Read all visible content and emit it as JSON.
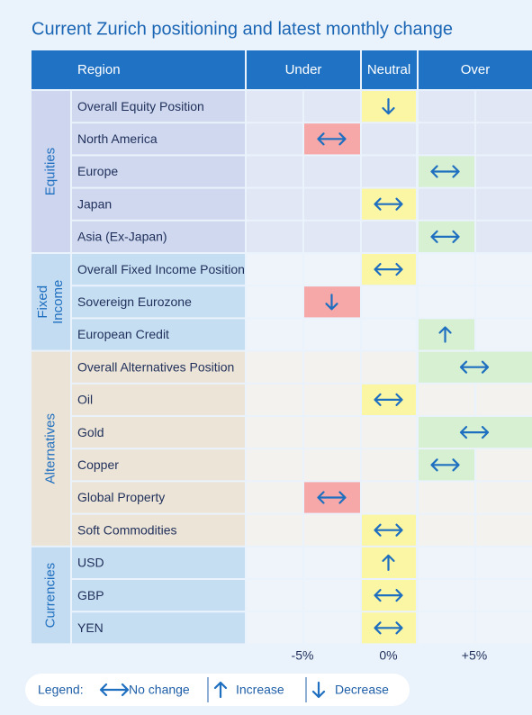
{
  "title": "Current Zurich positioning and latest monthly change",
  "header": {
    "region": "Region",
    "under": "Under",
    "neutral": "Neutral",
    "over": "Over"
  },
  "scale": {
    "ticks": [
      {
        "value": -5,
        "label": "-5%"
      },
      {
        "value": 0,
        "label": "0%"
      },
      {
        "value": 5,
        "label": "+5%"
      }
    ]
  },
  "groups": [
    {
      "label_lines": [
        "Equities"
      ],
      "rows": [
        {
          "label": "Overall Equity Position",
          "position": 0,
          "change": -1
        },
        {
          "label": "North America",
          "position": -3.3,
          "change": 0
        },
        {
          "label": "Europe",
          "position": 3.3,
          "change": 0
        },
        {
          "label": "Japan",
          "position": 0,
          "change": 0
        },
        {
          "label": "Asia (Ex-Japan)",
          "position": 3.3,
          "change": 0
        }
      ]
    },
    {
      "label_lines": [
        "Fixed",
        "Income"
      ],
      "rows": [
        {
          "label": "Overall Fixed Income Position",
          "position": 0,
          "change": 0
        },
        {
          "label": "Sovereign Eurozone",
          "position": -3.3,
          "change": -1
        },
        {
          "label": "European Credit",
          "position": 3.3,
          "change": 1
        }
      ]
    },
    {
      "label_lines": [
        "Alternatives"
      ],
      "rows": [
        {
          "label": "Overall Alternatives Position",
          "position": 5,
          "change": 0
        },
        {
          "label": "Oil",
          "position": 0,
          "change": 0
        },
        {
          "label": "Gold",
          "position": 5,
          "change": 0
        },
        {
          "label": "Copper",
          "position": 3.3,
          "change": 0
        },
        {
          "label": "Global Property",
          "position": -3.3,
          "change": 0
        },
        {
          "label": "Soft Commodities",
          "position": 0,
          "change": 0
        }
      ]
    },
    {
      "label_lines": [
        "Currencies"
      ],
      "rows": [
        {
          "label": "USD",
          "position": 0,
          "change": 1
        },
        {
          "label": "GBP",
          "position": 0,
          "change": 0
        },
        {
          "label": "YEN",
          "position": 0,
          "change": 0
        }
      ]
    }
  ],
  "legend": {
    "title": "Legend:",
    "items": [
      {
        "label": "No change",
        "change": 0
      },
      {
        "label": "Increase",
        "change": 1
      },
      {
        "label": "Decrease",
        "change": -1
      }
    ]
  }
}
